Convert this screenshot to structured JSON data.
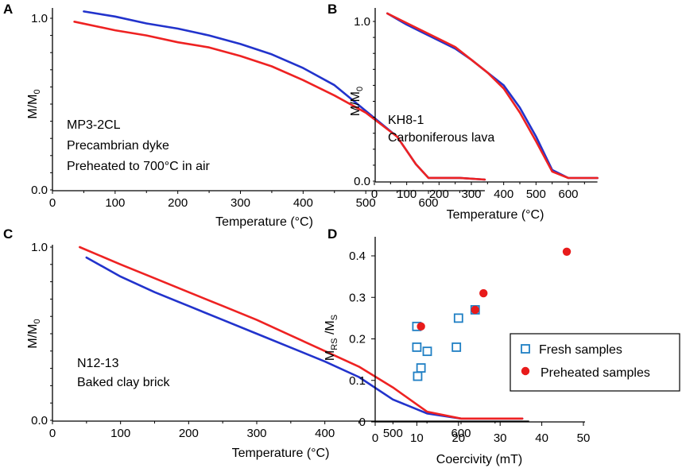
{
  "colors": {
    "blue": "#2233cc",
    "red": "#ee2222",
    "fresh": "#1f7fc4",
    "preheated": "#e81b1b",
    "axis": "#000000"
  },
  "chart_data": [
    {
      "panel": "A",
      "type": "line",
      "annotation": [
        "MP3-2CL",
        "Precambrian dyke",
        "Preheated to 700°C in air"
      ],
      "xlabel": "Temperature (°C)",
      "ylabel": "M/M",
      "ylabel_sub": "0",
      "xlim": [
        20,
        690
      ],
      "ylim": [
        0,
        1.06
      ],
      "xticks": [
        0,
        100,
        200,
        300,
        400,
        500,
        600
      ],
      "xtick_labels": [
        "0",
        "100",
        "200",
        "300",
        "400",
        "500",
        "600"
      ],
      "yticks": [
        0,
        1
      ],
      "ytick_labels": [
        "0.0",
        "1.0"
      ],
      "series": [
        {
          "name": "blue",
          "color": "blue",
          "x": [
            50,
            100,
            150,
            200,
            250,
            300,
            350,
            400,
            450,
            500,
            550,
            580,
            600,
            650,
            690
          ],
          "y": [
            1.04,
            1.01,
            0.97,
            0.94,
            0.9,
            0.85,
            0.79,
            0.71,
            0.61,
            0.46,
            0.31,
            0.15,
            0.07,
            0.07,
            0.06
          ]
        },
        {
          "name": "red",
          "color": "red",
          "x": [
            35,
            100,
            150,
            200,
            250,
            300,
            350,
            400,
            450,
            500,
            550,
            580,
            600,
            650,
            690
          ],
          "y": [
            0.98,
            0.93,
            0.9,
            0.86,
            0.83,
            0.78,
            0.72,
            0.64,
            0.55,
            0.45,
            0.31,
            0.15,
            0.07,
            0.07,
            0.06
          ]
        }
      ]
    },
    {
      "panel": "B",
      "type": "line",
      "annotation": [
        "KH8-1",
        "Carboniferous lava"
      ],
      "xlabel": "Temperature (°C)",
      "ylabel": "M/M",
      "ylabel_sub": "0",
      "xlim": [
        20,
        690
      ],
      "ylim": [
        0,
        1.06
      ],
      "xticks": [
        0,
        100,
        200,
        300,
        400,
        500,
        600
      ],
      "xtick_labels": [
        "0",
        "100",
        "200",
        "300",
        "400",
        "500",
        "600"
      ],
      "yticks": [
        0,
        1
      ],
      "ytick_labels": [
        "0.0",
        "1.0"
      ],
      "series": [
        {
          "name": "blue",
          "color": "blue",
          "x": [
            40,
            100,
            150,
            200,
            250,
            300,
            350,
            400,
            450,
            500,
            550,
            600,
            650,
            690
          ],
          "y": [
            1.05,
            0.98,
            0.93,
            0.88,
            0.83,
            0.76,
            0.68,
            0.6,
            0.46,
            0.28,
            0.07,
            0.02,
            0.02,
            0.02
          ]
        },
        {
          "name": "red",
          "color": "red",
          "x": [
            40,
            100,
            150,
            200,
            250,
            300,
            350,
            400,
            450,
            500,
            550,
            600,
            650,
            690
          ],
          "y": [
            1.05,
            0.99,
            0.94,
            0.89,
            0.84,
            0.76,
            0.68,
            0.58,
            0.43,
            0.25,
            0.06,
            0.02,
            0.02,
            0.02
          ]
        }
      ]
    },
    {
      "panel": "C",
      "type": "line",
      "annotation": [
        "N12-13",
        "Baked clay brick"
      ],
      "xlabel": "Temperature (°C)",
      "ylabel": "M/M",
      "ylabel_sub": "0",
      "xlim": [
        20,
        700
      ],
      "ylim": [
        0,
        1.06
      ],
      "xticks": [
        0,
        100,
        200,
        300,
        400,
        500,
        600
      ],
      "xtick_labels": [
        "0",
        "100",
        "200",
        "300",
        "400",
        "500",
        "600"
      ],
      "yticks": [
        0,
        1
      ],
      "ytick_labels": [
        "0.0",
        "1.0"
      ],
      "series": [
        {
          "name": "blue",
          "color": "blue",
          "x": [
            50,
            100,
            150,
            200,
            250,
            300,
            350,
            400,
            450,
            500,
            550,
            600,
            650,
            690
          ],
          "y": [
            0.94,
            0.83,
            0.74,
            0.66,
            0.58,
            0.5,
            0.42,
            0.34,
            0.25,
            0.12,
            0.04,
            0.01,
            0.01,
            0.01
          ]
        },
        {
          "name": "red",
          "color": "red",
          "x": [
            40,
            100,
            150,
            200,
            250,
            300,
            350,
            400,
            450,
            500,
            550,
            600,
            650,
            690
          ],
          "y": [
            1.0,
            0.9,
            0.82,
            0.74,
            0.66,
            0.58,
            0.49,
            0.4,
            0.31,
            0.19,
            0.05,
            0.01,
            0.01,
            0.01
          ]
        }
      ]
    },
    {
      "panel": "D",
      "type": "scatter",
      "xlabel": "Coercivity (mT)",
      "ylabel_main": "M",
      "ylabel_sub1": "RS",
      "ylabel_sep": " /M",
      "ylabel_sub2": "S",
      "xlim": [
        0,
        50
      ],
      "ylim": [
        0,
        0.45
      ],
      "xticks": [
        0,
        10,
        20,
        30,
        40,
        50
      ],
      "xtick_labels": [
        "0",
        "10",
        "20",
        "30",
        "40",
        "50"
      ],
      "yticks": [
        0,
        0.1,
        0.2,
        0.3,
        0.4
      ],
      "ytick_labels": [
        "0",
        "0.1",
        "0.2",
        "0.3",
        "0.4"
      ],
      "legend_position": "right",
      "series": [
        {
          "name": "Fresh samples",
          "marker": "open-square",
          "color": "fresh",
          "x": [
            10,
            10,
            10.2,
            11,
            12.5,
            19.5,
            20,
            24
          ],
          "y": [
            0.23,
            0.18,
            0.11,
            0.13,
            0.17,
            0.18,
            0.25,
            0.27
          ]
        },
        {
          "name": "Preheated samples",
          "marker": "filled-circle",
          "color": "preheated",
          "x": [
            11,
            24,
            26,
            46
          ],
          "y": [
            0.23,
            0.27,
            0.31,
            0.41
          ]
        }
      ]
    }
  ]
}
